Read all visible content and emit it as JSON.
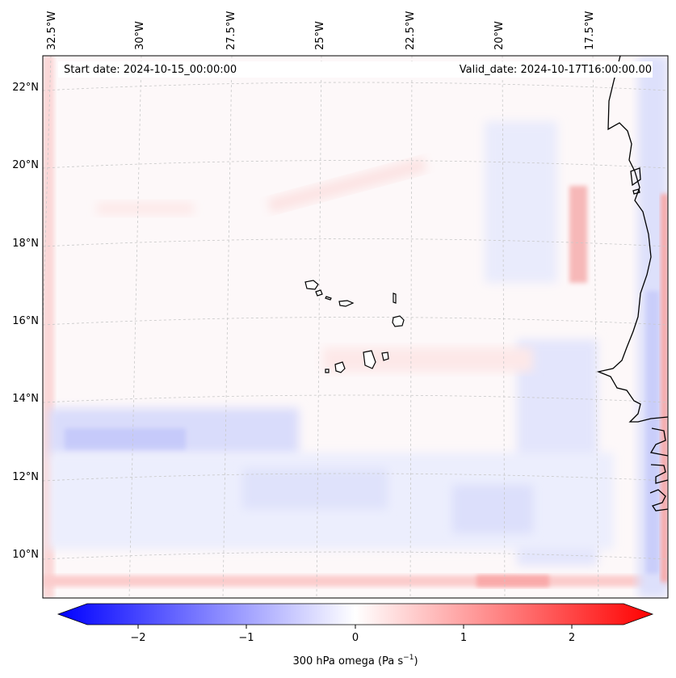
{
  "map": {
    "start_date_label": "Start date: 2024-10-15_00:00:00",
    "valid_date_label": "Valid_date: 2024-10-17T16:00:00.00",
    "lon_ticks": [
      "32.5°W",
      "30°W",
      "27.5°W",
      "25°W",
      "22.5°W",
      "20°W",
      "17.5°W"
    ],
    "lat_ticks": [
      "22°N",
      "20°N",
      "18°N",
      "16°N",
      "14°N",
      "12°N",
      "10°N"
    ],
    "region": "Cape Verde Islands and West African coast",
    "field": "300 hPa omega"
  },
  "colorbar": {
    "ticks": [
      "−2",
      "−1",
      "0",
      "1",
      "2"
    ],
    "title": "300 hPa omega (Pa s",
    "title_sup": "−1",
    "title_close": ")",
    "min_value": -2.6,
    "max_value": 2.6,
    "colors": {
      "negative": "#0000ff",
      "zero": "#ffffff",
      "positive": "#ff0000"
    }
  }
}
